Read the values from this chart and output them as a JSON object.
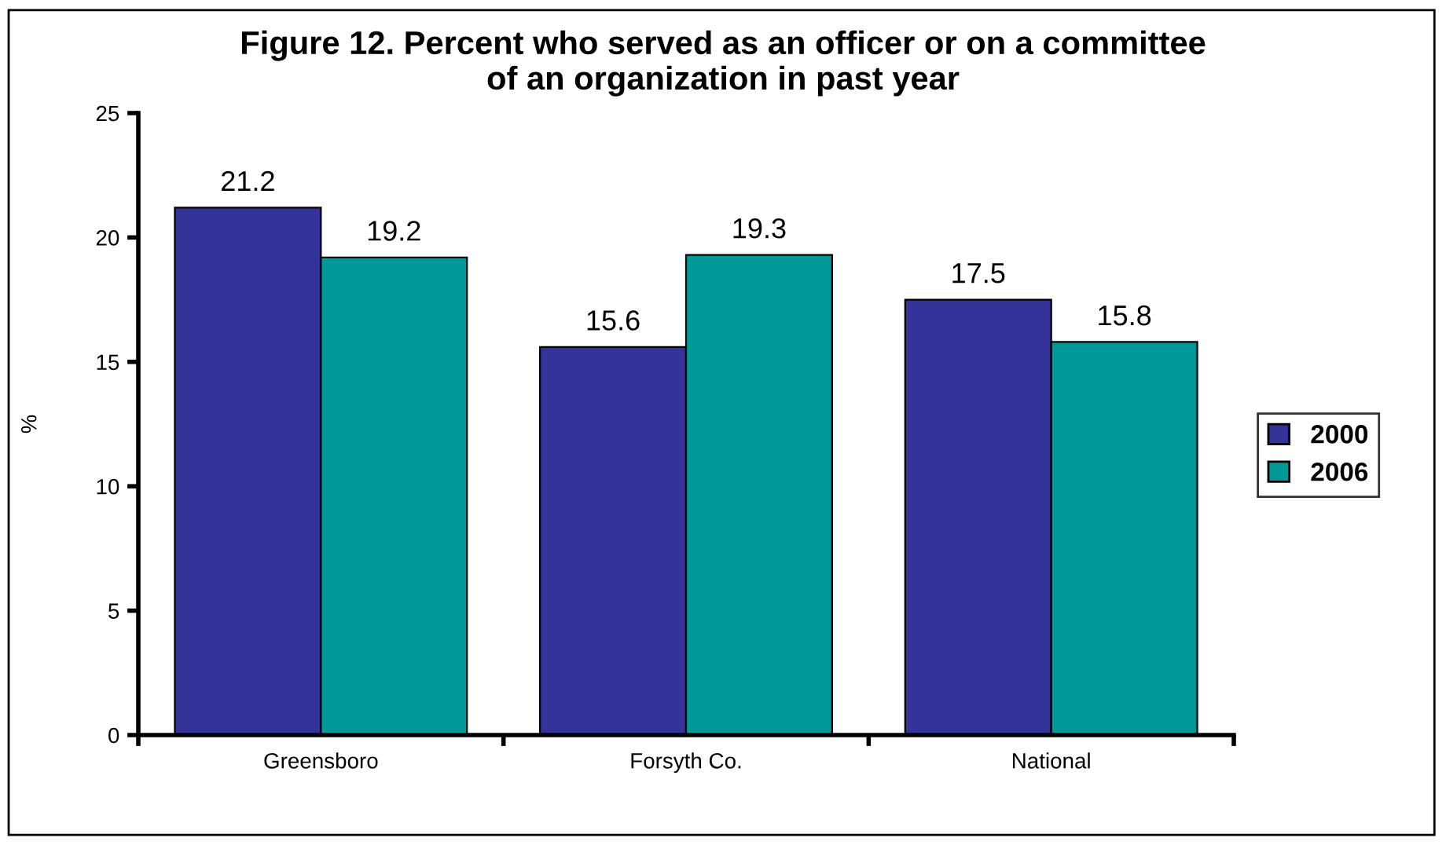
{
  "chart_data": {
    "type": "bar",
    "title": "Figure 12. Percent who served as an officer or on a committee\nof an organization in past year",
    "ylabel": "%",
    "categories": [
      "Greensboro",
      "Forsyth Co.",
      "National"
    ],
    "series": [
      {
        "name": "2000",
        "color": "#333399",
        "values": [
          21.2,
          15.6,
          17.5
        ]
      },
      {
        "name": "2006",
        "color": "#009999",
        "values": [
          19.2,
          19.3,
          15.8
        ]
      }
    ],
    "ylim": [
      0,
      25
    ],
    "yticks": [
      0,
      5,
      10,
      15,
      20,
      25
    ],
    "grid": false,
    "legend": "right",
    "data_labels": true
  }
}
